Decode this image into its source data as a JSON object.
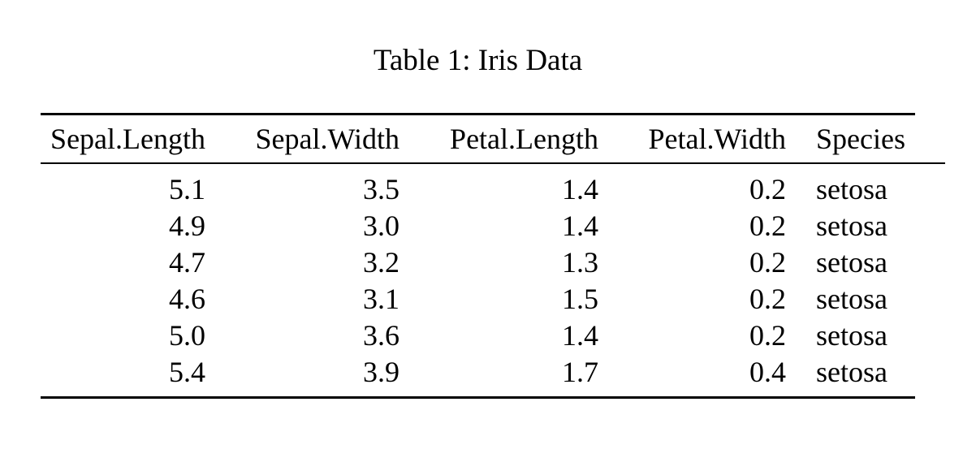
{
  "caption": "Table 1: Iris Data",
  "table": {
    "columns": [
      {
        "key": "sepal-length",
        "label": "Sepal.Length"
      },
      {
        "key": "sepal-width",
        "label": "Sepal.Width"
      },
      {
        "key": "petal-length",
        "label": "Petal.Length"
      },
      {
        "key": "petal-width",
        "label": "Petal.Width"
      },
      {
        "key": "species",
        "label": "Species"
      }
    ],
    "rows": [
      [
        "5.1",
        "3.5",
        "1.4",
        "0.2",
        "setosa"
      ],
      [
        "4.9",
        "3.0",
        "1.4",
        "0.2",
        "setosa"
      ],
      [
        "4.7",
        "3.2",
        "1.3",
        "0.2",
        "setosa"
      ],
      [
        "4.6",
        "3.1",
        "1.5",
        "0.2",
        "setosa"
      ],
      [
        "5.0",
        "3.6",
        "1.4",
        "0.2",
        "setosa"
      ],
      [
        "5.4",
        "3.9",
        "1.7",
        "0.4",
        "setosa"
      ]
    ]
  },
  "colors": {
    "background": "#ffffff",
    "text": "#000000",
    "rule": "#000000"
  }
}
